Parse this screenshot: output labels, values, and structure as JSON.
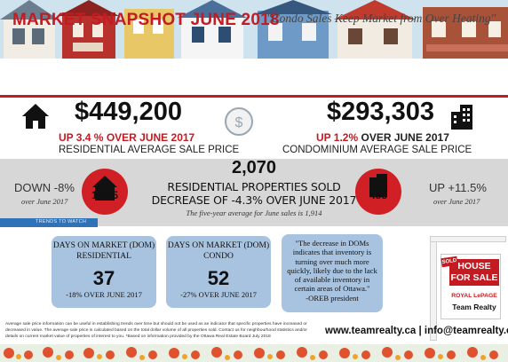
{
  "header": {
    "title": "MARKET SNAPSHOT JUNE 2018",
    "subtitle": "\"Condo Sales Keep Market from Over Heating\""
  },
  "residential": {
    "price": "$449,200",
    "change_prefix": "UP 3.4 %",
    "change_suffix": "OVER JUNE 2017",
    "label": "RESIDENTIAL AVERAGE SALE PRICE"
  },
  "condo": {
    "price": "$293,303",
    "change_prefix": "UP 1.2%",
    "change_suffix": "OVER JUNE 2017",
    "label": "CONDOMINIUM AVERAGE SALE PRICE"
  },
  "sales": {
    "left_change": "DOWN -8%",
    "left_note": "over June 2017",
    "left_count": "1,615",
    "total": "2,070",
    "total_label": "RESIDENTIAL PROPERTIES SOLD",
    "total_change": "DECREASE OF -4.3% OVER JUNE 2017",
    "five_year": "The five-year average for June sales is 1,914",
    "right_count": "455",
    "right_change": "UP +11.5%",
    "right_note": "over June 2017",
    "trends_label": "TRENDS TO WATCH"
  },
  "dom_residential": {
    "title_line1": "DAYS ON MARKET (DOM)",
    "title_line2": "RESIDENTIAL",
    "value": "37",
    "change": "-18% OVER JUNE 2017"
  },
  "dom_condo": {
    "title_line1": "DAYS ON MARKET (DOM)",
    "title_line2": "CONDO",
    "value": "52",
    "change": "-27% OVER JUNE 2017"
  },
  "quote": {
    "text": "\"The decrease in DOMs indicates that inventory is turning over much more quickly, likely due to the lack of available inventory in certain areas of Ottawa.\"",
    "author": "-OREB president"
  },
  "sign": {
    "sold": "SOLD",
    "for_sale_line1": "HOUSE",
    "for_sale_line2": "FOR SALE",
    "brand": "ROYAL LePAGE",
    "team": "Team Realty"
  },
  "footer": {
    "disclaimer": "Average sale price information can be useful in establishing trends over time but should not be used as an indicator that specific properties have increased or decreased in value. The average sale price is calculated based on the total dollar volume of all properties sold. Contact us for neighbourhood statistics and/or details on current market value of properties of interest to you. *Based on information provided by the Ottawa Real Estate Board July 2018",
    "website": "www.teamrealty.ca | info@teamrealty.ca"
  },
  "colors": {
    "accent_red": "#c41a22",
    "card_blue": "#a8c3df",
    "band_grey": "#d7d7d7",
    "trends_blue": "#2f72b8"
  }
}
